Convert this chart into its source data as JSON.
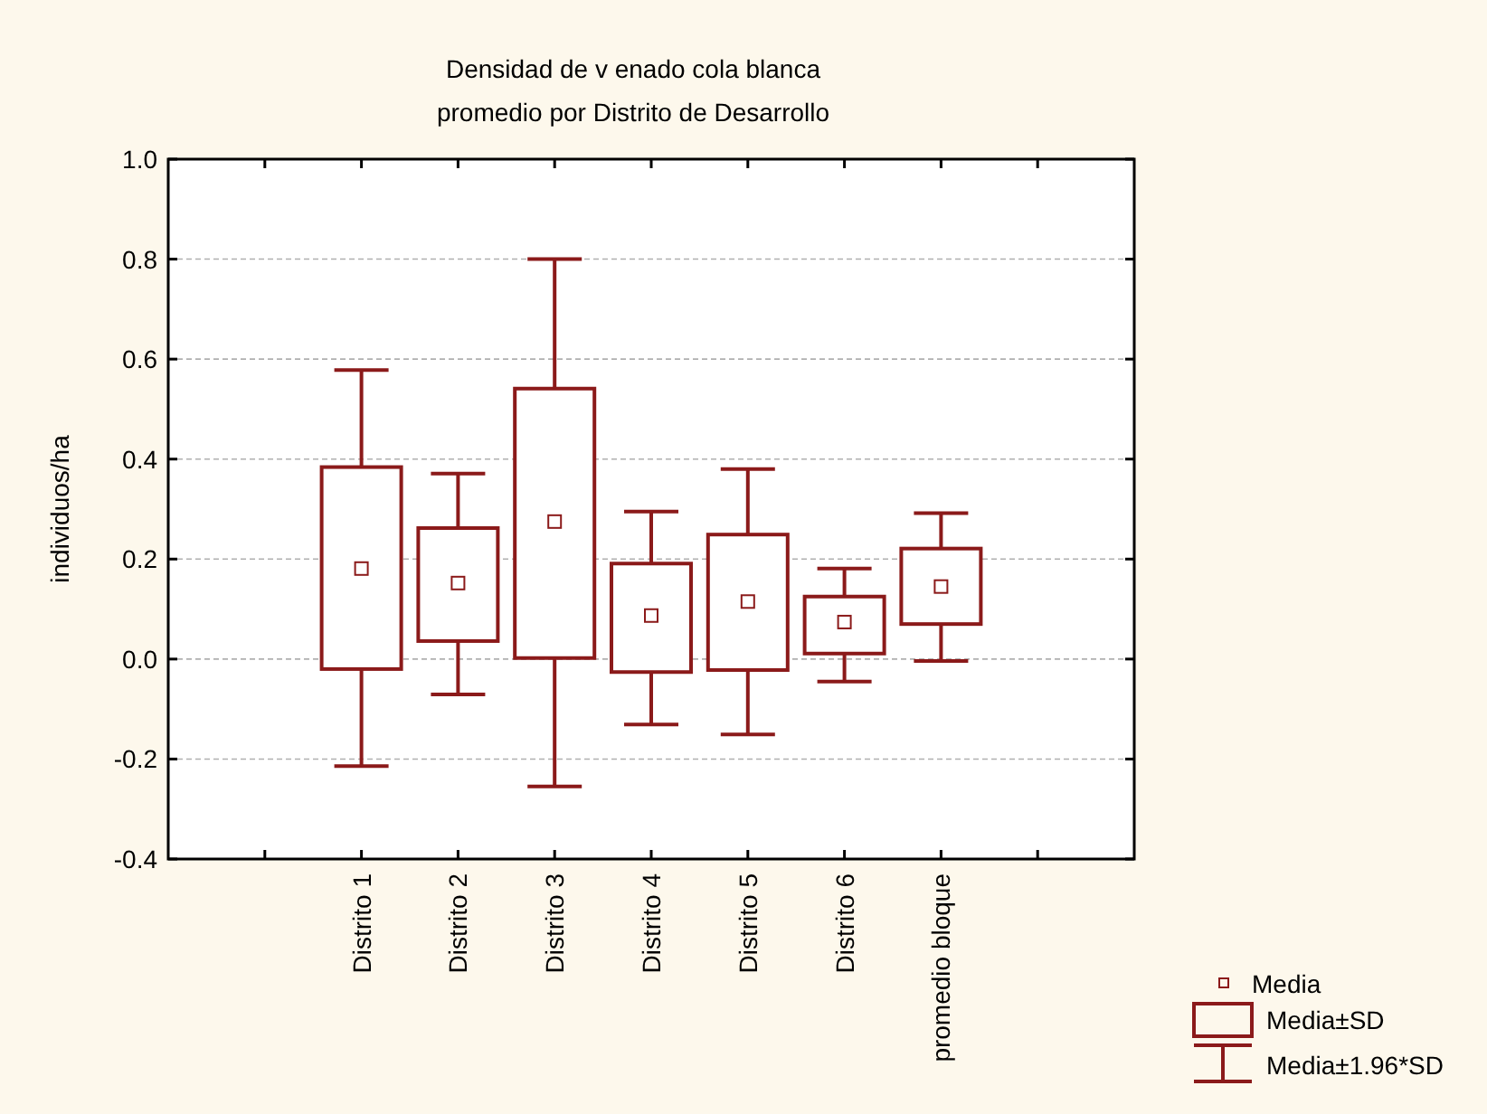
{
  "chart_data": {
    "type": "box",
    "title": "Densidad de v enado cola blanca",
    "subtitle": "promedio por Distrito de Desarrollo",
    "ylabel": "individuos/ha",
    "categories": [
      null,
      "Distrito 1",
      "Distrito 2",
      "Distrito 3",
      "Distrito 4",
      "Distrito 5",
      "Distrito 6",
      "promedio bloque",
      null
    ],
    "series": [
      {
        "color": "#8b1a1a",
        "boxes": [
          null,
          {
            "low": -0.214,
            "q1": -0.02,
            "q3": 0.384,
            "high": 0.578,
            "mean": 0.181
          },
          {
            "low": -0.071,
            "q1": 0.036,
            "q3": 0.262,
            "high": 0.371,
            "mean": 0.152
          },
          {
            "low": -0.255,
            "q1": 0.002,
            "q3": 0.541,
            "high": 0.8,
            "mean": 0.275
          },
          {
            "low": -0.131,
            "q1": -0.026,
            "q3": 0.191,
            "high": 0.295,
            "mean": 0.087
          },
          {
            "low": -0.151,
            "q1": -0.022,
            "q3": 0.249,
            "high": 0.38,
            "mean": 0.115
          },
          {
            "low": -0.045,
            "q1": 0.011,
            "q3": 0.125,
            "high": 0.181,
            "mean": 0.074
          },
          {
            "low": -0.004,
            "q1": 0.07,
            "q3": 0.221,
            "high": 0.292,
            "mean": 0.145
          },
          null
        ]
      }
    ],
    "ylim": [
      -0.4,
      1.0
    ],
    "yticks": [
      {
        "value": -0.4,
        "label": "-0.4"
      },
      {
        "value": -0.2,
        "label": "-0.2"
      },
      {
        "value": 0,
        "label": "0.0"
      },
      {
        "value": 0.2,
        "label": "0.2"
      },
      {
        "value": 0.4,
        "label": "0.4"
      },
      {
        "value": 0.6,
        "label": "0.6"
      },
      {
        "value": 0.8,
        "label": "0.8"
      },
      {
        "value": 1,
        "label": "1.0"
      }
    ],
    "grid": "y",
    "annotations": [
      "Media",
      "Media±SD",
      "Media±1.96*SD"
    ]
  }
}
